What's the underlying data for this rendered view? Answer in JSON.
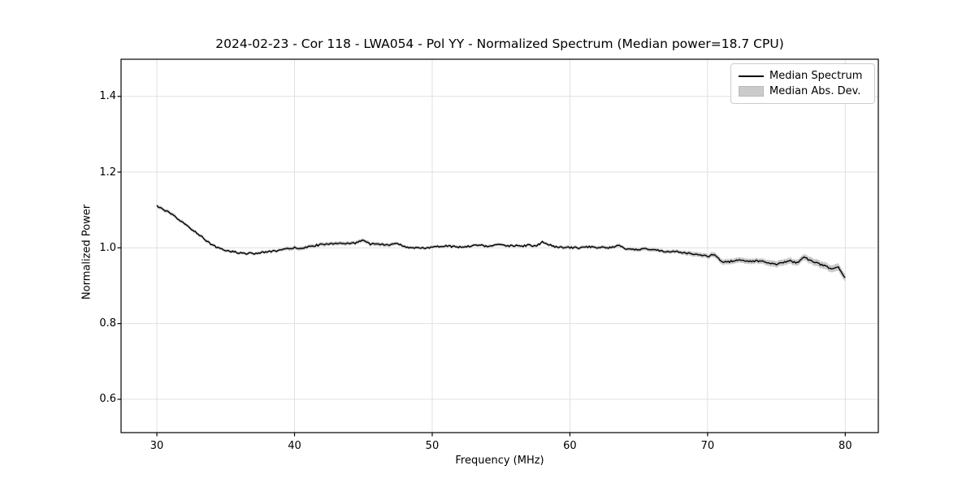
{
  "chart_data": {
    "type": "line",
    "title": "2024-02-23 - Cor 118 - LWA054 - Pol YY - Normalized Spectrum (Median power=18.7 CPU)",
    "xlabel": "Frequency (MHz)",
    "ylabel": "Normalized Power",
    "xlim": [
      27.4,
      82.4
    ],
    "ylim": [
      0.512,
      1.498
    ],
    "xticks": [
      30,
      40,
      50,
      60,
      70,
      80
    ],
    "xtick_labels": [
      "30",
      "40",
      "50",
      "60",
      "70",
      "80"
    ],
    "yticks": [
      0.6,
      0.8,
      1.0,
      1.2,
      1.4
    ],
    "ytick_labels": [
      "0.6",
      "0.8",
      "1.0",
      "1.2",
      "1.4"
    ],
    "grid": true,
    "legend_position": "upper right",
    "legend": [
      {
        "label": "Median Spectrum",
        "type": "line"
      },
      {
        "label": "Median Abs. Dev.",
        "type": "patch"
      }
    ],
    "colors": {
      "line": "#000000",
      "band": "#c9c9c9",
      "grid": "#e0e0e0",
      "spine": "#000000",
      "background": "#ffffff"
    },
    "series": {
      "x_start": 30.0,
      "x_step": 0.5,
      "median": [
        1.11,
        1.101,
        1.09,
        1.077,
        1.063,
        1.05,
        1.037,
        1.022,
        1.008,
        0.999,
        0.993,
        0.99,
        0.987,
        0.985,
        0.985,
        0.987,
        0.989,
        0.991,
        0.994,
        0.997,
        1.0,
        0.999,
        1.002,
        1.006,
        1.009,
        1.011,
        1.012,
        1.01,
        1.011,
        1.013,
        1.022,
        1.01,
        1.01,
        1.008,
        1.008,
        1.011,
        1.004,
        0.998,
        1.001,
        1.0,
        1.002,
        1.004,
        1.006,
        1.003,
        1.002,
        1.004,
        1.006,
        1.008,
        1.003,
        1.006,
        1.01,
        1.005,
        1.006,
        1.004,
        1.007,
        1.004,
        1.015,
        1.008,
        1.002,
        1.0,
        1.001,
        1.0,
        1.001,
        1.003,
        1.001,
        1.002,
        1.0,
        1.007,
        0.997,
        0.995,
        0.996,
        0.997,
        0.996,
        0.993,
        0.99,
        0.991,
        0.988,
        0.986,
        0.984,
        0.981,
        0.977,
        0.983,
        0.964,
        0.963,
        0.966,
        0.968,
        0.963,
        0.966,
        0.964,
        0.959,
        0.956,
        0.961,
        0.965,
        0.961,
        0.976,
        0.966,
        0.959,
        0.952,
        0.944,
        0.948,
        0.92
      ],
      "mad": [
        0.005,
        0.005,
        0.005,
        0.0045,
        0.0045,
        0.0045,
        0.0045,
        0.0045,
        0.004,
        0.004,
        0.004,
        0.004,
        0.004,
        0.004,
        0.004,
        0.004,
        0.004,
        0.004,
        0.004,
        0.005,
        0.005,
        0.005,
        0.005,
        0.005,
        0.005,
        0.005,
        0.005,
        0.005,
        0.005,
        0.005,
        0.005,
        0.005,
        0.005,
        0.005,
        0.005,
        0.004,
        0.004,
        0.004,
        0.004,
        0.004,
        0.004,
        0.004,
        0.004,
        0.004,
        0.004,
        0.004,
        0.004,
        0.004,
        0.004,
        0.004,
        0.004,
        0.004,
        0.004,
        0.004,
        0.004,
        0.004,
        0.004,
        0.004,
        0.004,
        0.0045,
        0.0045,
        0.0045,
        0.0045,
        0.0045,
        0.0045,
        0.0045,
        0.0045,
        0.0045,
        0.0045,
        0.005,
        0.005,
        0.005,
        0.005,
        0.005,
        0.005,
        0.005,
        0.005,
        0.006,
        0.006,
        0.006,
        0.006,
        0.007,
        0.007,
        0.007,
        0.007,
        0.007,
        0.007,
        0.007,
        0.007,
        0.008,
        0.008,
        0.008,
        0.008,
        0.008,
        0.008,
        0.009,
        0.009,
        0.009,
        0.009,
        0.01,
        0.01
      ]
    },
    "noise": {
      "seed": 12345,
      "amplitude": 0.0022,
      "step_mhz": 0.1
    }
  }
}
